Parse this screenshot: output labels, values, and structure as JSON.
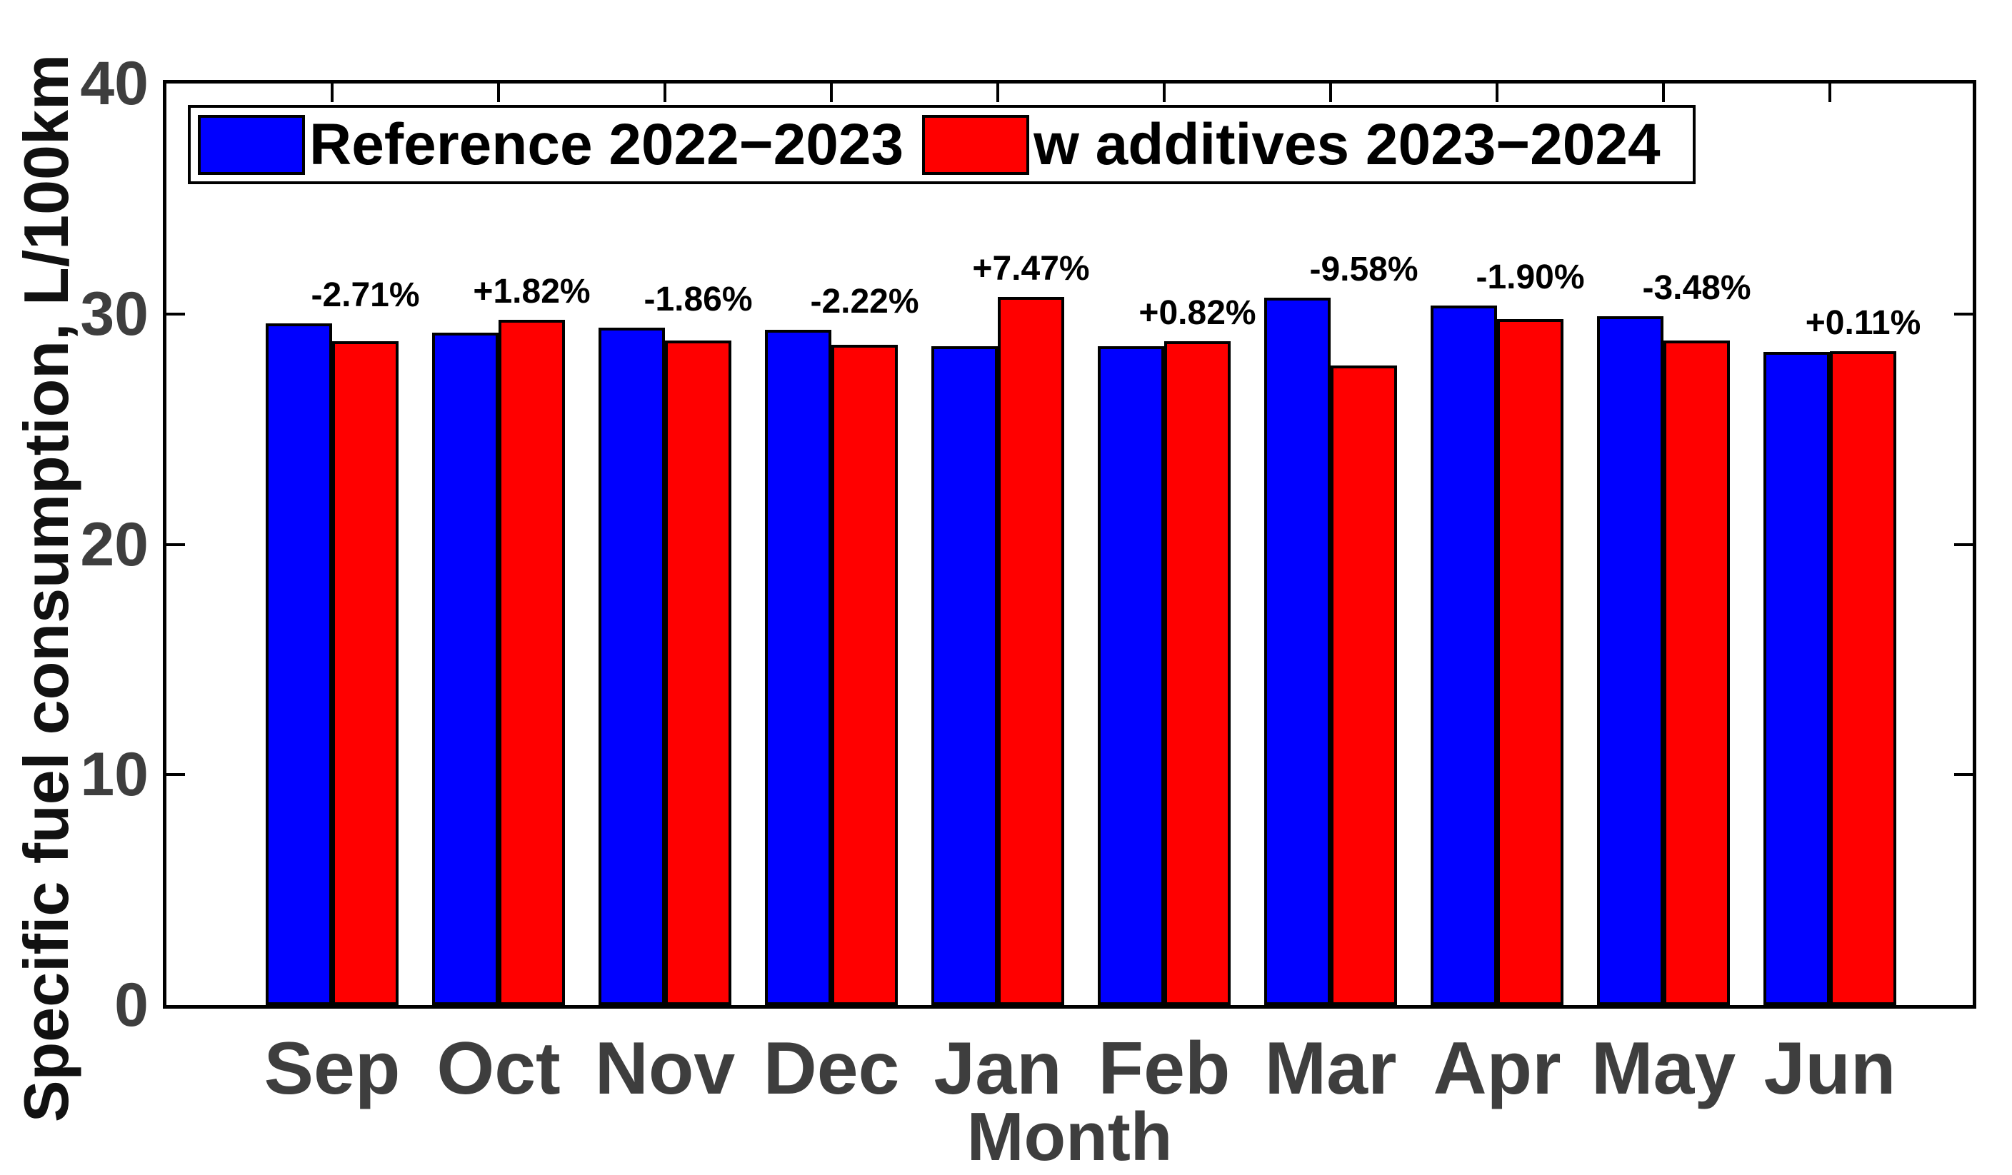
{
  "figure": {
    "background": "#ffffff"
  },
  "chart_data": {
    "type": "bar",
    "title": "",
    "xlabel": "Month",
    "ylabel": "Specific fuel consumption, L/100km",
    "categories": [
      "Sep",
      "Oct",
      "Nov",
      "Dec",
      "Jan",
      "Feb",
      "Mar",
      "Apr",
      "May",
      "Jun"
    ],
    "series": [
      {
        "name": "Reference 2022−2023",
        "color": "#0000ff",
        "values": [
          29.6,
          29.2,
          29.4,
          29.3,
          28.6,
          28.6,
          30.7,
          30.35,
          29.9,
          28.35
        ]
      },
      {
        "name": "w additives 2023−2024",
        "color": "#ff0000",
        "values": [
          28.8,
          29.73,
          28.85,
          28.65,
          30.74,
          28.83,
          27.76,
          29.77,
          28.86,
          28.38
        ]
      }
    ],
    "annotations": [
      "-2.71%",
      "+1.82%",
      "-1.86%",
      "-2.22%",
      "+7.47%",
      "+0.82%",
      "-9.58%",
      "-1.90%",
      "-3.48%",
      "+0.11%"
    ],
    "ylim": [
      0,
      40
    ],
    "yticks": [
      0,
      10,
      20,
      30,
      40
    ],
    "grid": false,
    "legend_position": "top-left-inside",
    "colors": {
      "axis": "#000000",
      "tick_label": "#3e3e3e",
      "bar_edge": "#000000",
      "annotation": "#000000"
    }
  }
}
